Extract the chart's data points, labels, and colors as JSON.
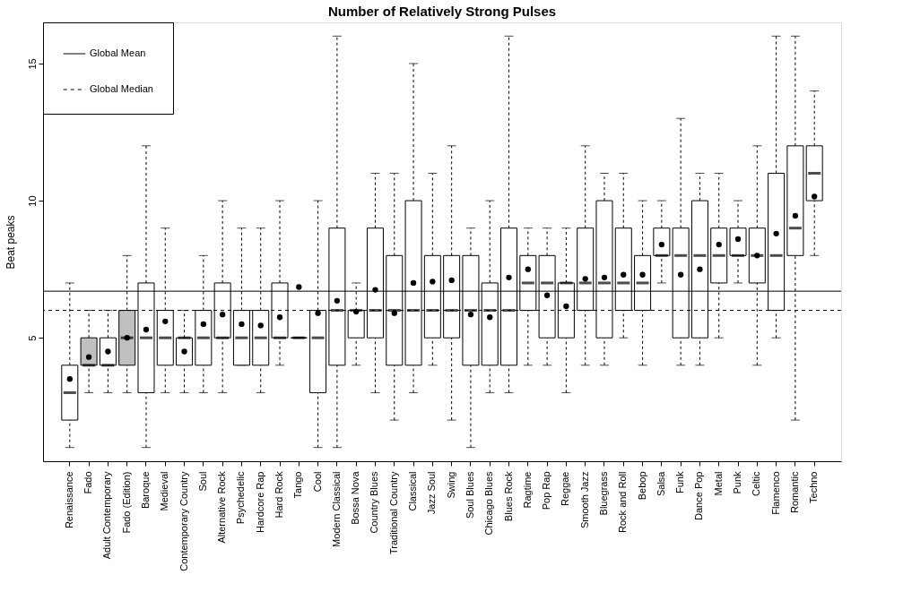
{
  "chart_data": {
    "type": "box",
    "title": "Number of Relatively Strong Pulses",
    "ylabel": "Beat peaks",
    "categories": [
      "Renaissance",
      "Fado",
      "Adult Contemporary",
      "Fado (Edition)",
      "Baroque",
      "Medieval",
      "Contemporary Country",
      "Soul",
      "Alternative Rock",
      "Psychedelic",
      "Hardcore Rap",
      "Hard Rock",
      "Tango",
      "Cool",
      "Modern Classical",
      "Bossa Nova",
      "Country Blues",
      "Traditional Country",
      "Classical",
      "Jazz Soul",
      "Swing",
      "Soul Blues",
      "Chicago Blues",
      "Blues Rock",
      "Ragtime",
      "Pop Rap",
      "Reggae",
      "Smooth Jazz",
      "Bluegrass",
      "Rock and Roll",
      "Bebop",
      "Salsa",
      "Funk",
      "Dance Pop",
      "Metal",
      "Punk",
      "Celtic",
      "Flamenco",
      "Romantic",
      "Techno"
    ],
    "boxes": [
      {
        "low": 1,
        "q1": 2,
        "median": 3,
        "q3": 4,
        "high": 7,
        "mean": 3.5
      },
      {
        "low": 3,
        "q1": 4,
        "median": 4,
        "q3": 5,
        "high": 6,
        "mean": 4.3
      },
      {
        "low": 3,
        "q1": 4,
        "median": 4,
        "q3": 5,
        "high": 6,
        "mean": 4.5
      },
      {
        "low": 3,
        "q1": 4,
        "median": 5,
        "q3": 6,
        "high": 8,
        "mean": 5.0
      },
      {
        "low": 1,
        "q1": 3,
        "median": 5,
        "q3": 7,
        "high": 12,
        "mean": 5.3
      },
      {
        "low": 3,
        "q1": 4,
        "median": 5,
        "q3": 6,
        "high": 9,
        "mean": 5.6
      },
      {
        "low": 3,
        "q1": 4,
        "median": 5,
        "q3": 5,
        "high": 6,
        "mean": 4.5
      },
      {
        "low": 3,
        "q1": 4,
        "median": 5,
        "q3": 6,
        "high": 8,
        "mean": 5.5
      },
      {
        "low": 3,
        "q1": 5,
        "median": 5,
        "q3": 7,
        "high": 10,
        "mean": 5.85
      },
      {
        "low": 4,
        "q1": 4,
        "median": 5,
        "q3": 6,
        "high": 9,
        "mean": 5.5
      },
      {
        "low": 3,
        "q1": 4,
        "median": 5,
        "q3": 6,
        "high": 9,
        "mean": 5.45
      },
      {
        "low": 4,
        "q1": 5,
        "median": 5,
        "q3": 7,
        "high": 10,
        "mean": 5.75
      },
      {
        "low": 5,
        "q1": 5,
        "median": 5,
        "q3": 5,
        "high": 5,
        "mean": 6.85
      },
      {
        "low": 1,
        "q1": 3,
        "median": 5,
        "q3": 6,
        "high": 10,
        "mean": 5.9
      },
      {
        "low": 1,
        "q1": 4,
        "median": 6,
        "q3": 9,
        "high": 16,
        "mean": 6.35
      },
      {
        "low": 4,
        "q1": 5,
        "median": 6,
        "q3": 6,
        "high": 7,
        "mean": 5.95
      },
      {
        "low": 3,
        "q1": 5,
        "median": 6,
        "q3": 9,
        "high": 11,
        "mean": 6.75
      },
      {
        "low": 2,
        "q1": 4,
        "median": 6,
        "q3": 8,
        "high": 11,
        "mean": 5.9
      },
      {
        "low": 3,
        "q1": 4,
        "median": 6,
        "q3": 10,
        "high": 15,
        "mean": 7.0
      },
      {
        "low": 4,
        "q1": 5,
        "median": 6,
        "q3": 8,
        "high": 11,
        "mean": 7.05
      },
      {
        "low": 2,
        "q1": 5,
        "median": 6,
        "q3": 8,
        "high": 12,
        "mean": 7.1
      },
      {
        "low": 1,
        "q1": 4,
        "median": 6,
        "q3": 8,
        "high": 9,
        "mean": 5.85
      },
      {
        "low": 3,
        "q1": 4,
        "median": 6,
        "q3": 7,
        "high": 10,
        "mean": 5.75
      },
      {
        "low": 3,
        "q1": 4,
        "median": 6,
        "q3": 9,
        "high": 16,
        "mean": 7.2
      },
      {
        "low": 4,
        "q1": 6,
        "median": 7,
        "q3": 8,
        "high": 9,
        "mean": 7.5
      },
      {
        "low": 4,
        "q1": 5,
        "median": 7,
        "q3": 8,
        "high": 9,
        "mean": 6.55
      },
      {
        "low": 3,
        "q1": 5,
        "median": 7,
        "q3": 7,
        "high": 9,
        "mean": 6.15
      },
      {
        "low": 4,
        "q1": 6,
        "median": 7,
        "q3": 9,
        "high": 12,
        "mean": 7.15
      },
      {
        "low": 4,
        "q1": 5,
        "median": 7,
        "q3": 10,
        "high": 11,
        "mean": 7.2
      },
      {
        "low": 5,
        "q1": 6,
        "median": 7,
        "q3": 9,
        "high": 11,
        "mean": 7.3
      },
      {
        "low": 4,
        "q1": 6,
        "median": 7,
        "q3": 8,
        "high": 10,
        "mean": 7.3
      },
      {
        "low": 7,
        "q1": 8,
        "median": 8,
        "q3": 9,
        "high": 10,
        "mean": 8.4
      },
      {
        "low": 4,
        "q1": 5,
        "median": 8,
        "q3": 9,
        "high": 13,
        "mean": 7.3
      },
      {
        "low": 4,
        "q1": 5,
        "median": 8,
        "q3": 10,
        "high": 11,
        "mean": 7.5
      },
      {
        "low": 5,
        "q1": 7,
        "median": 8,
        "q3": 9,
        "high": 11,
        "mean": 8.4
      },
      {
        "low": 7,
        "q1": 8,
        "median": 8,
        "q3": 9,
        "high": 10,
        "mean": 8.6
      },
      {
        "low": 4,
        "q1": 7,
        "median": 8,
        "q3": 9,
        "high": 12,
        "mean": 8.0
      },
      {
        "low": 5,
        "q1": 6,
        "median": 8,
        "q3": 11,
        "high": 16,
        "mean": 8.8
      },
      {
        "low": 2,
        "q1": 8,
        "median": 9,
        "q3": 12,
        "high": 16,
        "mean": 9.45
      },
      {
        "low": 8,
        "q1": 10,
        "median": 11,
        "q3": 12,
        "high": 14,
        "mean": 10.15
      }
    ],
    "colors": [
      "#ffffff",
      "#c0c0c0",
      "#ffffff",
      "#c0c0c0",
      "#ffffff",
      "#ffffff",
      "#ffffff",
      "#ffffff",
      "#ffffff",
      "#ffffff",
      "#ffffff",
      "#ffffff",
      "#000000",
      "#ffffff",
      "#ffffff",
      "#ffffff",
      "#ffffff",
      "#ffffff",
      "#ffffff",
      "#ffffff",
      "#ffffff",
      "#ffffff",
      "#ffffff",
      "#ffffff",
      "#ffffff",
      "#ffffff",
      "#ffffff",
      "#ffffff",
      "#ffffff",
      "#ffffff",
      "#ffffff",
      "#ffffff",
      "#ffffff",
      "#ffffff",
      "#ffffff",
      "#ffffff",
      "#ffffff",
      "#ffffff",
      "#ffffff",
      "#ffffff"
    ],
    "ylim": [
      0.5,
      16.5
    ],
    "yticks": [
      5,
      10,
      15
    ],
    "ref_lines": [
      {
        "axis": "y",
        "value": 6.7,
        "label": "Global Mean",
        "line_style": "solid",
        "color": "#000000"
      },
      {
        "axis": "y",
        "value": 6,
        "label": "Global Median",
        "line_style": "dashed",
        "color": "#000000"
      }
    ],
    "legend": "top left",
    "grid": false
  }
}
